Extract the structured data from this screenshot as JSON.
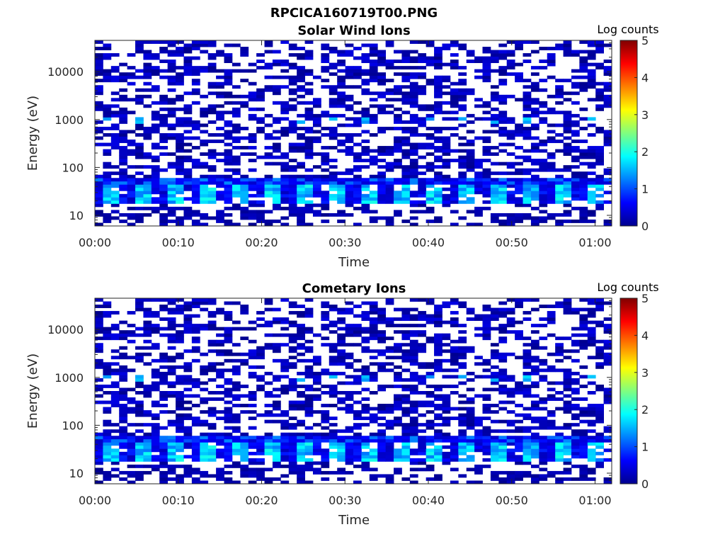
{
  "figure": {
    "title": "RPCICA160719T00.PNG"
  },
  "chart_data": [
    {
      "type": "heatmap",
      "title": "Solar Wind Ions",
      "xlabel": "Time",
      "ylabel": "Energy (eV)",
      "x_ticks": [
        "00:00",
        "00:10",
        "00:20",
        "00:30",
        "00:40",
        "00:50",
        "01:00"
      ],
      "x_tick_minutes": [
        0,
        10,
        20,
        30,
        40,
        50,
        60
      ],
      "xlim_minutes": [
        0,
        62
      ],
      "y_ticks": [
        "10",
        "100",
        "1000",
        "10000"
      ],
      "y_tick_values": [
        10,
        100,
        1000,
        10000
      ],
      "ylim": [
        6,
        45000
      ],
      "y_scale": "log",
      "colorbar": {
        "label": "Log counts",
        "ticks": [
          "0",
          "1",
          "2",
          "3",
          "4",
          "5"
        ],
        "range": [
          0,
          5
        ],
        "colormap": "jet"
      },
      "background": "#ffffff",
      "n_time_bins": 64,
      "n_energy_bins": 58,
      "bands": [
        {
          "description_ev": [
            45,
            60
          ],
          "typical_log_counts": 0.6
        },
        {
          "description_ev": [
            18,
            32
          ],
          "typical_log_counts": 1.7,
          "periodic_minutes": 3.2
        },
        {
          "description_ev": [
            900,
            1100
          ],
          "typical_log_counts": 1.4,
          "periodic_minutes": 3.2
        }
      ]
    },
    {
      "type": "heatmap",
      "title": "Cometary Ions",
      "xlabel": "Time",
      "ylabel": "Energy (eV)",
      "x_ticks": [
        "00:00",
        "00:10",
        "00:20",
        "00:30",
        "00:40",
        "00:50",
        "01:00"
      ],
      "x_tick_minutes": [
        0,
        10,
        20,
        30,
        40,
        50,
        60
      ],
      "xlim_minutes": [
        0,
        62
      ],
      "y_ticks": [
        "10",
        "100",
        "1000",
        "10000"
      ],
      "y_tick_values": [
        10,
        100,
        1000,
        10000
      ],
      "ylim": [
        6,
        45000
      ],
      "y_scale": "log",
      "colorbar": {
        "label": "Log counts",
        "ticks": [
          "0",
          "1",
          "2",
          "3",
          "4",
          "5"
        ],
        "range": [
          0,
          5
        ],
        "colormap": "jet"
      },
      "background": "#ffffff",
      "n_time_bins": 64,
      "n_energy_bins": 58,
      "bands": [
        {
          "description_ev": [
            45,
            60
          ],
          "typical_log_counts": 0.6
        },
        {
          "description_ev": [
            18,
            32
          ],
          "typical_log_counts": 1.7,
          "periodic_minutes": 3.2
        },
        {
          "description_ev": [
            900,
            1100
          ],
          "typical_log_counts": 1.4,
          "periodic_minutes": 3.2
        }
      ]
    }
  ]
}
